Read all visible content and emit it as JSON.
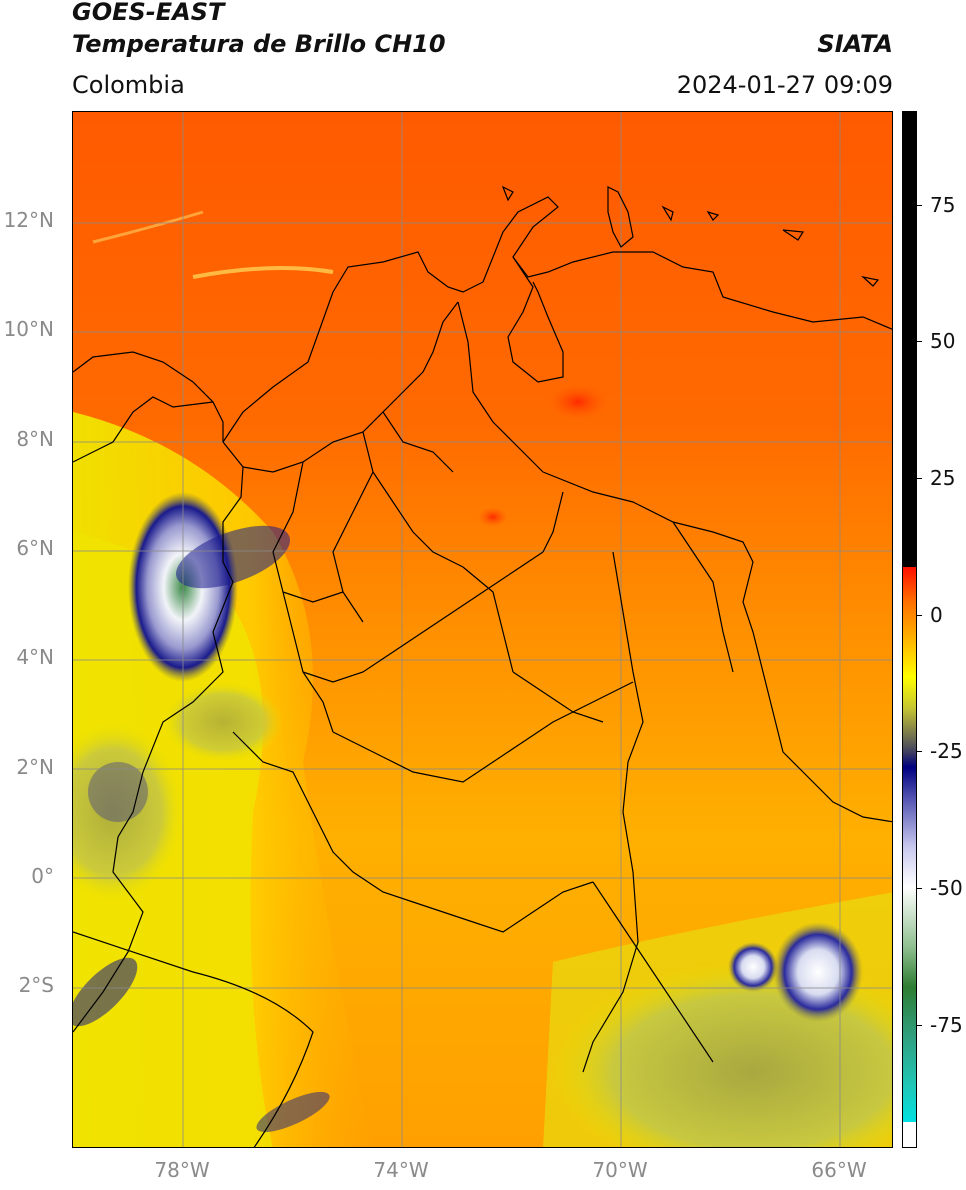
{
  "header": {
    "title_line1": "GOES-EAST",
    "title_line2": "Temperatura de Brillo CH10",
    "brand": "SIATA",
    "region": "Colombia",
    "datetime": "2024-01-27 09:09"
  },
  "map": {
    "latitude_labels": [
      "12°N",
      "10°N",
      "8°N",
      "6°N",
      "4°N",
      "2°N",
      "0°",
      "2°S"
    ],
    "longitude_labels": [
      "78°W",
      "74°W",
      "70°W",
      "66°W"
    ],
    "colors": {
      "warm_red": "#ff4a00",
      "orange": "#ff8c00",
      "yellow": "#f5e600",
      "olive": "#b8b83a",
      "navy": "#1a1a8c",
      "cloud_white": "#f2f4f8",
      "cloud_green": "#3a8a46",
      "grid": "#8a8a8a",
      "border": "#000000"
    }
  },
  "colorbar": {
    "tick_labels": [
      "75",
      "50",
      "25",
      "0",
      "-25",
      "-50",
      "-75"
    ],
    "range": [
      -95,
      92
    ]
  }
}
